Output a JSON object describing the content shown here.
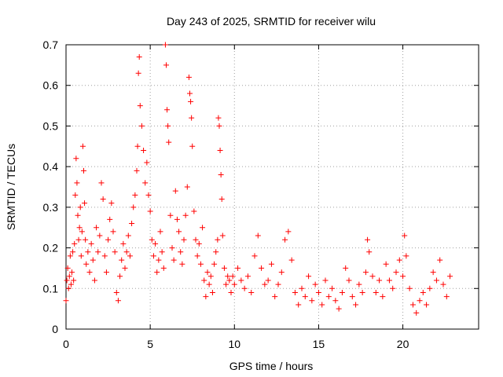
{
  "chart_data": {
    "type": "scatter",
    "title": "Day 243 of 2025, SRMTID for receiver wilu",
    "xlabel": "GPS time / hours",
    "ylabel": "SRMTID / TECUs",
    "xlim": [
      0,
      24.5
    ],
    "ylim": [
      0,
      0.7
    ],
    "x_ticks": [
      0,
      5,
      10,
      15,
      20
    ],
    "x_tick_labels": [
      "0",
      "5",
      "10",
      "15",
      "20"
    ],
    "y_ticks": [
      0,
      0.1,
      0.2,
      0.3,
      0.4,
      0.5,
      0.6,
      0.7
    ],
    "y_tick_labels": [
      "0",
      "0.1",
      "0.2",
      "0.3",
      "0.4",
      "0.5",
      "0.6",
      "0.7"
    ],
    "grid": true,
    "marker": "+",
    "color": "#ff0000",
    "series": [
      {
        "name": "SRMTID",
        "points": [
          [
            0.0,
            0.07
          ],
          [
            0.05,
            0.12
          ],
          [
            0.1,
            0.15
          ],
          [
            0.15,
            0.1
          ],
          [
            0.2,
            0.13
          ],
          [
            0.25,
            0.18
          ],
          [
            0.3,
            0.11
          ],
          [
            0.35,
            0.14
          ],
          [
            0.4,
            0.19
          ],
          [
            0.45,
            0.12
          ],
          [
            0.5,
            0.21
          ],
          [
            0.55,
            0.33
          ],
          [
            0.6,
            0.42
          ],
          [
            0.65,
            0.36
          ],
          [
            0.7,
            0.28
          ],
          [
            0.75,
            0.22
          ],
          [
            0.8,
            0.25
          ],
          [
            0.85,
            0.3
          ],
          [
            0.9,
            0.18
          ],
          [
            0.95,
            0.24
          ],
          [
            1.0,
            0.45
          ],
          [
            1.05,
            0.39
          ],
          [
            1.1,
            0.31
          ],
          [
            1.15,
            0.22
          ],
          [
            1.2,
            0.16
          ],
          [
            1.3,
            0.19
          ],
          [
            1.4,
            0.14
          ],
          [
            1.5,
            0.21
          ],
          [
            1.6,
            0.17
          ],
          [
            1.7,
            0.12
          ],
          [
            1.8,
            0.25
          ],
          [
            1.9,
            0.19
          ],
          [
            2.0,
            0.23
          ],
          [
            2.1,
            0.36
          ],
          [
            2.2,
            0.32
          ],
          [
            2.3,
            0.18
          ],
          [
            2.4,
            0.14
          ],
          [
            2.5,
            0.22
          ],
          [
            2.6,
            0.27
          ],
          [
            2.7,
            0.31
          ],
          [
            2.8,
            0.24
          ],
          [
            2.9,
            0.19
          ],
          [
            3.0,
            0.09
          ],
          [
            3.1,
            0.07
          ],
          [
            3.2,
            0.13
          ],
          [
            3.3,
            0.17
          ],
          [
            3.4,
            0.21
          ],
          [
            3.5,
            0.15
          ],
          [
            3.6,
            0.19
          ],
          [
            3.7,
            0.23
          ],
          [
            3.8,
            0.18
          ],
          [
            3.9,
            0.26
          ],
          [
            4.0,
            0.3
          ],
          [
            4.1,
            0.33
          ],
          [
            4.2,
            0.39
          ],
          [
            4.25,
            0.45
          ],
          [
            4.3,
            0.63
          ],
          [
            4.35,
            0.67
          ],
          [
            4.4,
            0.55
          ],
          [
            4.5,
            0.5
          ],
          [
            4.6,
            0.44
          ],
          [
            4.7,
            0.36
          ],
          [
            4.8,
            0.41
          ],
          [
            4.9,
            0.33
          ],
          [
            5.0,
            0.29
          ],
          [
            5.1,
            0.22
          ],
          [
            5.2,
            0.18
          ],
          [
            5.3,
            0.21
          ],
          [
            5.4,
            0.14
          ],
          [
            5.5,
            0.17
          ],
          [
            5.6,
            0.24
          ],
          [
            5.7,
            0.19
          ],
          [
            5.8,
            0.15
          ],
          [
            5.9,
            0.7
          ],
          [
            5.95,
            0.65
          ],
          [
            6.0,
            0.54
          ],
          [
            6.05,
            0.5
          ],
          [
            6.1,
            0.46
          ],
          [
            6.2,
            0.28
          ],
          [
            6.3,
            0.2
          ],
          [
            6.4,
            0.17
          ],
          [
            6.5,
            0.34
          ],
          [
            6.6,
            0.27
          ],
          [
            6.7,
            0.24
          ],
          [
            6.8,
            0.19
          ],
          [
            6.9,
            0.16
          ],
          [
            7.0,
            0.22
          ],
          [
            7.1,
            0.28
          ],
          [
            7.2,
            0.35
          ],
          [
            7.3,
            0.62
          ],
          [
            7.35,
            0.58
          ],
          [
            7.4,
            0.56
          ],
          [
            7.45,
            0.52
          ],
          [
            7.5,
            0.45
          ],
          [
            7.6,
            0.29
          ],
          [
            7.7,
            0.22
          ],
          [
            7.8,
            0.18
          ],
          [
            7.9,
            0.21
          ],
          [
            8.0,
            0.16
          ],
          [
            8.1,
            0.25
          ],
          [
            8.2,
            0.12
          ],
          [
            8.3,
            0.08
          ],
          [
            8.4,
            0.14
          ],
          [
            8.5,
            0.11
          ],
          [
            8.6,
            0.13
          ],
          [
            8.7,
            0.09
          ],
          [
            8.8,
            0.16
          ],
          [
            8.9,
            0.19
          ],
          [
            9.0,
            0.22
          ],
          [
            9.05,
            0.52
          ],
          [
            9.1,
            0.5
          ],
          [
            9.15,
            0.44
          ],
          [
            9.2,
            0.38
          ],
          [
            9.25,
            0.32
          ],
          [
            9.3,
            0.23
          ],
          [
            9.4,
            0.15
          ],
          [
            9.5,
            0.11
          ],
          [
            9.6,
            0.13
          ],
          [
            9.7,
            0.12
          ],
          [
            9.8,
            0.09
          ],
          [
            9.9,
            0.13
          ],
          [
            10.0,
            0.11
          ],
          [
            10.2,
            0.15
          ],
          [
            10.4,
            0.12
          ],
          [
            10.6,
            0.1
          ],
          [
            10.8,
            0.13
          ],
          [
            11.0,
            0.09
          ],
          [
            11.2,
            0.18
          ],
          [
            11.4,
            0.23
          ],
          [
            11.6,
            0.15
          ],
          [
            11.8,
            0.11
          ],
          [
            12.0,
            0.12
          ],
          [
            12.2,
            0.16
          ],
          [
            12.4,
            0.08
          ],
          [
            12.6,
            0.11
          ],
          [
            12.8,
            0.14
          ],
          [
            13.0,
            0.22
          ],
          [
            13.2,
            0.24
          ],
          [
            13.4,
            0.17
          ],
          [
            13.6,
            0.09
          ],
          [
            13.8,
            0.06
          ],
          [
            14.0,
            0.1
          ],
          [
            14.2,
            0.08
          ],
          [
            14.4,
            0.13
          ],
          [
            14.6,
            0.07
          ],
          [
            14.8,
            0.11
          ],
          [
            15.0,
            0.09
          ],
          [
            15.2,
            0.06
          ],
          [
            15.4,
            0.12
          ],
          [
            15.6,
            0.08
          ],
          [
            15.8,
            0.1
          ],
          [
            16.0,
            0.07
          ],
          [
            16.2,
            0.05
          ],
          [
            16.4,
            0.09
          ],
          [
            16.6,
            0.15
          ],
          [
            16.8,
            0.12
          ],
          [
            17.0,
            0.08
          ],
          [
            17.2,
            0.06
          ],
          [
            17.4,
            0.11
          ],
          [
            17.6,
            0.09
          ],
          [
            17.8,
            0.14
          ],
          [
            17.9,
            0.22
          ],
          [
            18.0,
            0.19
          ],
          [
            18.2,
            0.13
          ],
          [
            18.4,
            0.09
          ],
          [
            18.6,
            0.12
          ],
          [
            18.8,
            0.08
          ],
          [
            19.0,
            0.16
          ],
          [
            19.2,
            0.12
          ],
          [
            19.4,
            0.1
          ],
          [
            19.6,
            0.14
          ],
          [
            19.8,
            0.17
          ],
          [
            20.0,
            0.13
          ],
          [
            20.1,
            0.23
          ],
          [
            20.2,
            0.18
          ],
          [
            20.4,
            0.1
          ],
          [
            20.6,
            0.06
          ],
          [
            20.8,
            0.04
          ],
          [
            21.0,
            0.07
          ],
          [
            21.2,
            0.09
          ],
          [
            21.4,
            0.06
          ],
          [
            21.6,
            0.1
          ],
          [
            21.8,
            0.14
          ],
          [
            22.0,
            0.12
          ],
          [
            22.2,
            0.17
          ],
          [
            22.4,
            0.11
          ],
          [
            22.6,
            0.08
          ],
          [
            22.8,
            0.13
          ]
        ]
      }
    ]
  }
}
